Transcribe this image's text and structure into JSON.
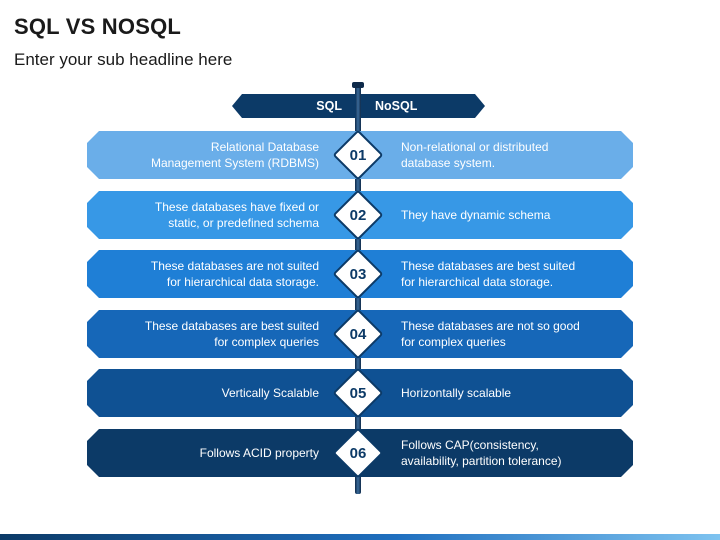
{
  "header": {
    "title": "SQL VS NOSQL",
    "subtitle": "Enter your sub headline here"
  },
  "columns": {
    "left_label": "SQL",
    "right_label": "NoSQL"
  },
  "rows": [
    {
      "number": "01",
      "sql_line1": "Relational Database",
      "sql_line2": "Management System (RDBMS)",
      "nosql_line1": "Non-relational or distributed",
      "nosql_line2": "database system.",
      "color": "#6aaee9"
    },
    {
      "number": "02",
      "sql_line1": "These databases have fixed or",
      "sql_line2": "static, or predefined schema",
      "nosql_line1": "They have dynamic schema",
      "nosql_line2": "",
      "color": "#3798e6"
    },
    {
      "number": "03",
      "sql_line1": "These databases are not suited",
      "sql_line2": "for hierarchical data storage.",
      "nosql_line1": "These databases are best suited",
      "nosql_line2": "for hierarchical data storage.",
      "color": "#1f7fd6"
    },
    {
      "number": "04",
      "sql_line1": "These databases are best suited",
      "sql_line2": "for complex queries",
      "nosql_line1": "These databases are not so good",
      "nosql_line2": "for complex queries",
      "color": "#1667b8"
    },
    {
      "number": "05",
      "sql_line1": "Vertically Scalable",
      "sql_line2": "",
      "nosql_line1": "Horizontally scalable",
      "nosql_line2": "",
      "color": "#0f5193"
    },
    {
      "number": "06",
      "sql_line1": "Follows ACID property",
      "sql_line2": "",
      "nosql_line1": "Follows CAP(consistency,",
      "nosql_line2": "availability, partition tolerance)",
      "color": "#0c3a67"
    }
  ]
}
